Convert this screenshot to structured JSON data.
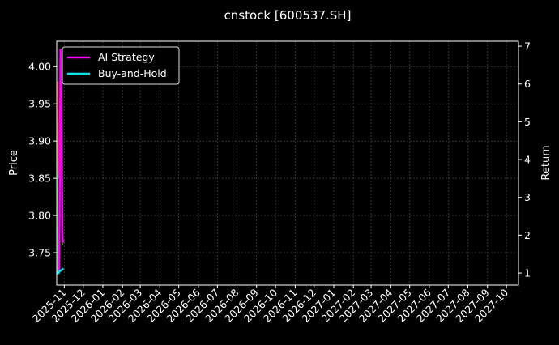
{
  "chart_data": {
    "type": "line",
    "title": "cnstock [600537.SH]",
    "ylabel_left": "Price",
    "ylabel_right": "Return",
    "ylim_left": [
      3.7065,
      4.034
    ],
    "ylim_right": [
      0.68,
      7.13
    ],
    "xlim": [
      "2025-10-20",
      "2027-10-20"
    ],
    "grid": true,
    "legend_position": "top-left",
    "x_ticks": [
      "2025-11",
      "2025-12",
      "2026-01",
      "2026-02",
      "2026-03",
      "2026-04",
      "2026-05",
      "2026-06",
      "2026-07",
      "2026-08",
      "2026-09",
      "2026-10",
      "2026-11",
      "2026-12",
      "2027-01",
      "2027-02",
      "2027-03",
      "2027-04",
      "2027-05",
      "2027-06",
      "2027-07",
      "2027-08",
      "2027-09",
      "2027-10"
    ],
    "y_ticks_left": [
      "3.75",
      "3.80",
      "3.85",
      "3.90",
      "3.95",
      "4.00"
    ],
    "y_ticks_right": [
      "1",
      "2",
      "3",
      "4",
      "5",
      "6",
      "7"
    ],
    "price": {
      "x": [
        "2025-10-21",
        "2025-10-22",
        "2025-10-23",
        "2025-10-28",
        "2025-10-29",
        "2025-10-30"
      ],
      "values": [
        3.72,
        3.98,
        3.85,
        3.89,
        3.76,
        3.78
      ],
      "colors": {
        "up": "#1fa01f",
        "down": "#e0301e"
      }
    },
    "series": [
      {
        "name": "AI Strategy",
        "color": "#ff00ff",
        "x": [
          "2025-10-23",
          "2025-10-24",
          "2025-10-26",
          "2025-10-27",
          "2025-10-29",
          "2025-10-30"
        ],
        "values": [
          1.0,
          1.05,
          6.9,
          6.9,
          2.0,
          1.8
        ]
      },
      {
        "name": "Buy-and-Hold",
        "color": "#00e5ee",
        "x": [
          "2025-10-20",
          "2025-10-23",
          "2025-10-25",
          "2025-10-27",
          "2025-10-29",
          "2025-10-31"
        ],
        "values": [
          1.0,
          1.0,
          1.05,
          1.07,
          1.1,
          1.11
        ]
      }
    ]
  }
}
